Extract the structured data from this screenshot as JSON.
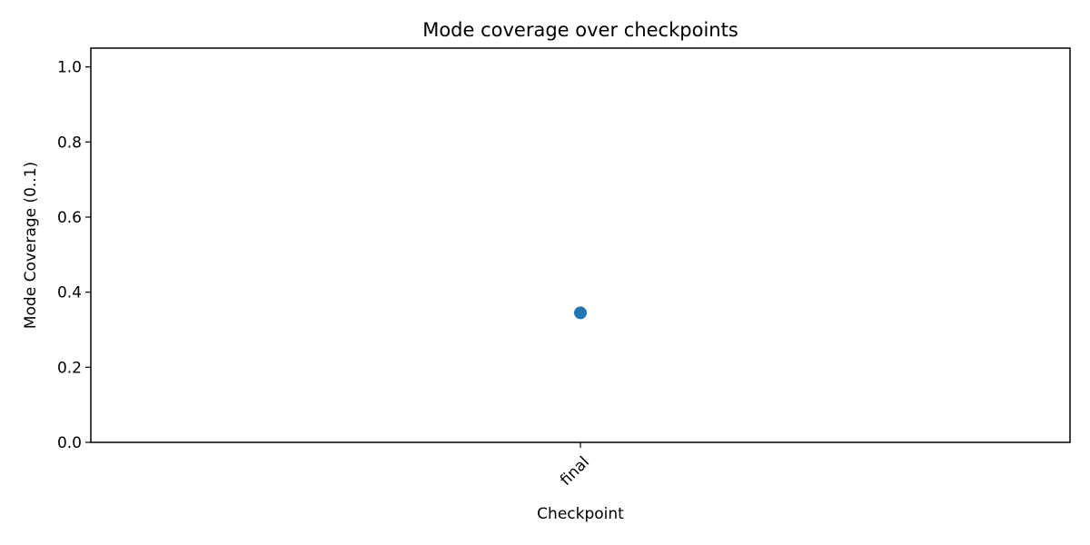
{
  "chart_data": {
    "type": "line",
    "title": "Mode coverage over checkpoints",
    "xlabel": "Checkpoint",
    "ylabel": "Mode Coverage (0..1)",
    "categories": [
      "final"
    ],
    "series": [
      {
        "values": [
          0.345
        ],
        "color": "#1f77b4",
        "marker": "circle"
      }
    ],
    "ylim": [
      0,
      1.05
    ],
    "yticks": [
      0.0,
      0.2,
      0.4,
      0.6,
      0.8,
      1.0
    ],
    "ytick_labels": [
      "0.0",
      "0.2",
      "0.4",
      "0.6",
      "0.8",
      "1.0"
    ],
    "xtick_rotation_deg": 45,
    "grid": false,
    "legend": "none"
  }
}
